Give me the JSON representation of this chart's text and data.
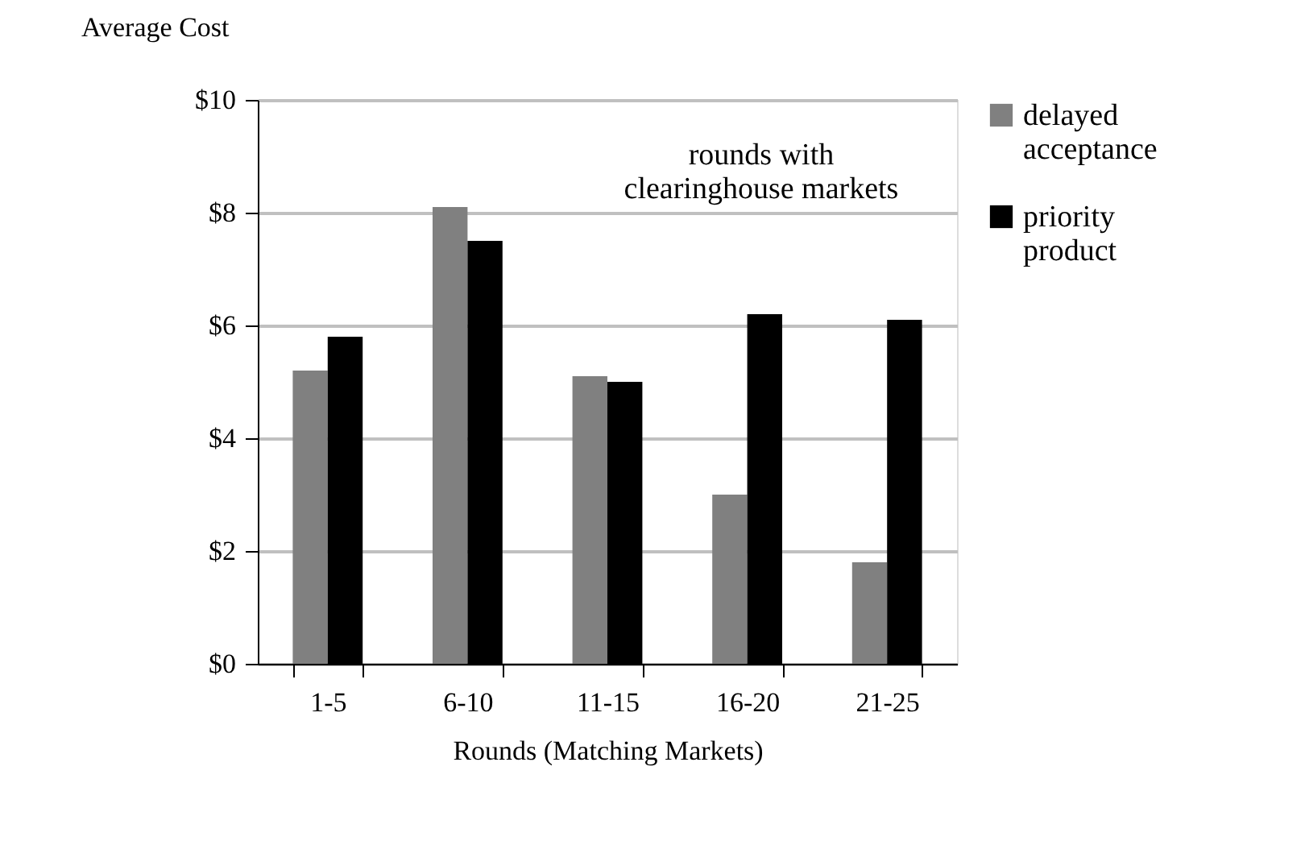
{
  "chart_data": {
    "type": "bar",
    "xlabel": "Rounds (Matching Markets)",
    "ylabel": "Average Cost",
    "categories": [
      "1-5",
      "6-10",
      "11-15",
      "16-20",
      "21-25"
    ],
    "series": [
      {
        "name": "delayed acceptance",
        "color": "#808080",
        "values": [
          5.2,
          8.1,
          5.1,
          3.0,
          1.8
        ]
      },
      {
        "name": "priority product",
        "color": "#000000",
        "values": [
          5.8,
          7.5,
          5.0,
          6.2,
          6.1
        ]
      }
    ],
    "ylim": [
      0,
      10
    ],
    "yticks": [
      {
        "value": 0,
        "label": "$0"
      },
      {
        "value": 2,
        "label": "$2"
      },
      {
        "value": 4,
        "label": "$4"
      },
      {
        "value": 6,
        "label": "$6"
      },
      {
        "value": 8,
        "label": "$8"
      },
      {
        "value": 10,
        "label": "$10"
      }
    ],
    "grid": "y",
    "legend": "right",
    "annotations": [
      "rounds with\nclearinghouse markets"
    ]
  }
}
